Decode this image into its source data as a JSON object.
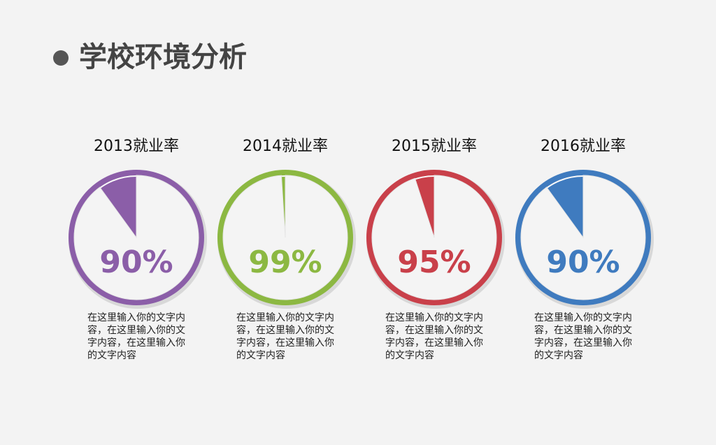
{
  "header": {
    "title": "学校环境分析"
  },
  "chart_data": [
    {
      "type": "pie",
      "title": "2013就业率",
      "values": [
        90
      ],
      "value_labels": [
        "90%"
      ],
      "color": "#8b5ea8",
      "caption": "在这里输入你的文字内容，在这里输入你的文字内容，在这里输入你的文字内容"
    },
    {
      "type": "pie",
      "title": "2014就业率",
      "values": [
        99
      ],
      "value_labels": [
        "99%"
      ],
      "color": "#8cb842",
      "caption": "在这里输入你的文字内容，在这里输入你的文字内容，在这里输入你的文字内容"
    },
    {
      "type": "pie",
      "title": "2015就业率",
      "values": [
        95
      ],
      "value_labels": [
        "95%"
      ],
      "color": "#c9404a",
      "caption": "在这里输入你的文字内容，在这里输入你的文字内容，在这里输入你的文字内容"
    },
    {
      "type": "pie",
      "title": "2016就业率",
      "values": [
        90
      ],
      "value_labels": [
        "90%"
      ],
      "color": "#3f7bbf",
      "caption": "在这里输入你的文字内容，在这里输入你的文字内容，在这里输入你的文字内容"
    }
  ]
}
